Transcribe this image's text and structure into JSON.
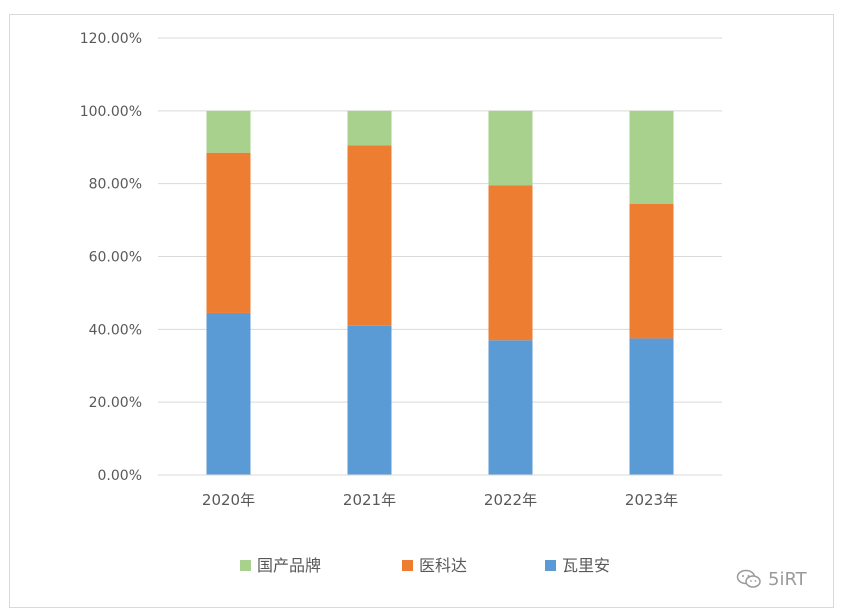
{
  "chart_data": {
    "type": "bar",
    "stacked": true,
    "categories": [
      "2020年",
      "2021年",
      "2022年",
      "2023年"
    ],
    "series": [
      {
        "name": "瓦里安",
        "color": "#5b9bd5",
        "values": [
          44.5,
          41.0,
          37.0,
          37.5
        ]
      },
      {
        "name": "医科达",
        "color": "#ed7d31",
        "values": [
          44.0,
          49.5,
          42.5,
          37.0
        ]
      },
      {
        "name": "国产品牌",
        "color": "#a9d18e",
        "values": [
          11.5,
          9.5,
          20.5,
          25.5
        ]
      }
    ],
    "yticks": [
      "0.00%",
      "20.00%",
      "40.00%",
      "60.00%",
      "80.00%",
      "100.00%",
      "120.00%"
    ],
    "ylim": [
      0,
      120
    ],
    "grid": true,
    "legend_position": "bottom",
    "legend_order": [
      "国产品牌",
      "医科达",
      "瓦里安"
    ],
    "title": "",
    "xlabel": "",
    "ylabel": ""
  },
  "watermark": {
    "text": "5iRT",
    "icon": "wechat-icon"
  }
}
